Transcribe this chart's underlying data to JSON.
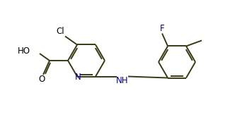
{
  "line_color": "#3a3a10",
  "text_color": "#000000",
  "N_color": "#0000aa",
  "F_color": "#0000aa",
  "bg_color": "#ffffff",
  "label_F": "F",
  "label_Cl": "Cl",
  "label_N": "N",
  "label_NH": "NH",
  "label_O": "O",
  "label_HO": "HO",
  "figsize": [
    3.32,
    1.76
  ],
  "dpi": 100
}
